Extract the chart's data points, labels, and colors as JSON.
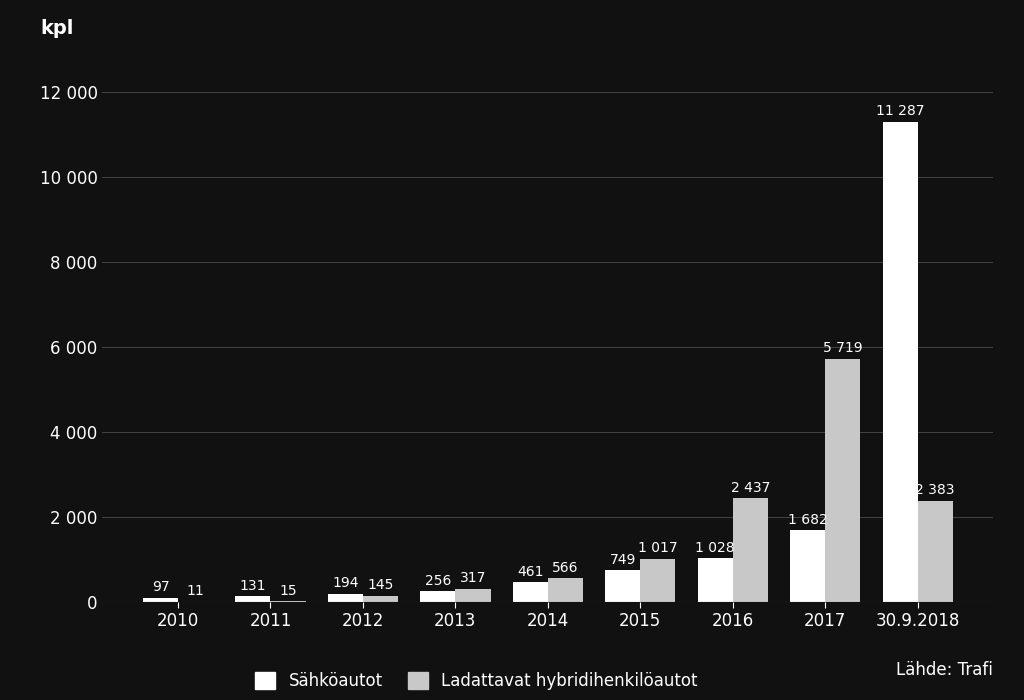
{
  "categories": [
    "2010",
    "2011",
    "2012",
    "2013",
    "2014",
    "2015",
    "2016",
    "2017",
    "30.9.2018"
  ],
  "sahkoautot": [
    97,
    131,
    194,
    256,
    461,
    749,
    1028,
    1682,
    11287
  ],
  "hybridit": [
    11,
    15,
    145,
    317,
    566,
    1017,
    2437,
    5719,
    2383
  ],
  "sahko_color": "#ffffff",
  "hybridi_color": "#c8c8c8",
  "background_color": "#111111",
  "text_color": "#ffffff",
  "grid_color": "#444444",
  "kpl_label": "kpl",
  "ylim": [
    0,
    13000
  ],
  "yticks": [
    0,
    2000,
    4000,
    6000,
    8000,
    10000,
    12000
  ],
  "legend_sahko": "Sähköautot",
  "legend_hybridi": "Ladattavat hybridihenkilöautot",
  "source_text": "Lähde: Trafi",
  "bar_width": 0.38,
  "label_fontsize": 12,
  "tick_fontsize": 12,
  "annot_fontsize": 10,
  "kpl_fontsize": 14
}
